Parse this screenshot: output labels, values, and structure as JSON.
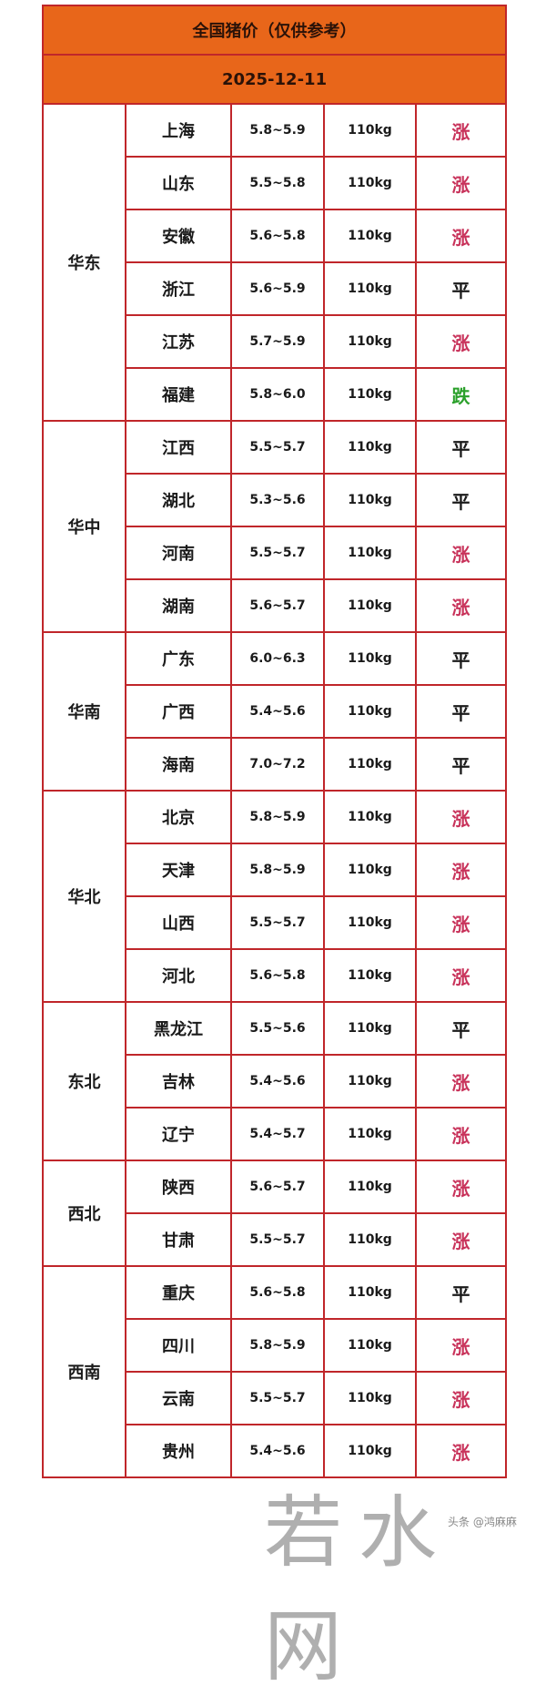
{
  "title": "全国猪价（仅供参考）",
  "date": "2025-12-11",
  "colors": {
    "header_bg": "#e8661a",
    "border": "#c0262a",
    "up": "#c8325a",
    "down": "#2aa02a",
    "flat": "#1a1a1a"
  },
  "regions": [
    {
      "name": "华东",
      "rows": [
        {
          "province": "上海",
          "price": "5.8~5.9",
          "weight": "110kg",
          "trend": "涨"
        },
        {
          "province": "山东",
          "price": "5.5~5.8",
          "weight": "110kg",
          "trend": "涨"
        },
        {
          "province": "安徽",
          "price": "5.6~5.8",
          "weight": "110kg",
          "trend": "涨"
        },
        {
          "province": "浙江",
          "price": "5.6~5.9",
          "weight": "110kg",
          "trend": "平"
        },
        {
          "province": "江苏",
          "price": "5.7~5.9",
          "weight": "110kg",
          "trend": "涨"
        },
        {
          "province": "福建",
          "price": "5.8~6.0",
          "weight": "110kg",
          "trend": "跌"
        }
      ]
    },
    {
      "name": "华中",
      "rows": [
        {
          "province": "江西",
          "price": "5.5~5.7",
          "weight": "110kg",
          "trend": "平"
        },
        {
          "province": "湖北",
          "price": "5.3~5.6",
          "weight": "110kg",
          "trend": "平"
        },
        {
          "province": "河南",
          "price": "5.5~5.7",
          "weight": "110kg",
          "trend": "涨"
        },
        {
          "province": "湖南",
          "price": "5.6~5.7",
          "weight": "110kg",
          "trend": "涨"
        }
      ]
    },
    {
      "name": "华南",
      "rows": [
        {
          "province": "广东",
          "price": "6.0~6.3",
          "weight": "110kg",
          "trend": "平"
        },
        {
          "province": "广西",
          "price": "5.4~5.6",
          "weight": "110kg",
          "trend": "平"
        },
        {
          "province": "海南",
          "price": "7.0~7.2",
          "weight": "110kg",
          "trend": "平"
        }
      ]
    },
    {
      "name": "华北",
      "rows": [
        {
          "province": "北京",
          "price": "5.8~5.9",
          "weight": "110kg",
          "trend": "涨"
        },
        {
          "province": "天津",
          "price": "5.8~5.9",
          "weight": "110kg",
          "trend": "涨"
        },
        {
          "province": "山西",
          "price": "5.5~5.7",
          "weight": "110kg",
          "trend": "涨"
        },
        {
          "province": "河北",
          "price": "5.6~5.8",
          "weight": "110kg",
          "trend": "涨"
        }
      ]
    },
    {
      "name": "东北",
      "rows": [
        {
          "province": "黑龙江",
          "price": "5.5~5.6",
          "weight": "110kg",
          "trend": "平"
        },
        {
          "province": "吉林",
          "price": "5.4~5.6",
          "weight": "110kg",
          "trend": "涨"
        },
        {
          "province": "辽宁",
          "price": "5.4~5.7",
          "weight": "110kg",
          "trend": "涨"
        }
      ]
    },
    {
      "name": "西北",
      "rows": [
        {
          "province": "陕西",
          "price": "5.6~5.7",
          "weight": "110kg",
          "trend": "涨"
        },
        {
          "province": "甘肃",
          "price": "5.5~5.7",
          "weight": "110kg",
          "trend": "涨"
        }
      ]
    },
    {
      "name": "西南",
      "rows": [
        {
          "province": "重庆",
          "price": "5.6~5.8",
          "weight": "110kg",
          "trend": "平"
        },
        {
          "province": "四川",
          "price": "5.8~5.9",
          "weight": "110kg",
          "trend": "涨"
        },
        {
          "province": "云南",
          "price": "5.5~5.7",
          "weight": "110kg",
          "trend": "涨"
        },
        {
          "province": "贵州",
          "price": "5.4~5.6",
          "weight": "110kg",
          "trend": "涨"
        }
      ]
    }
  ],
  "watermark": "若水网",
  "credit": "头条 @鸿麻麻"
}
